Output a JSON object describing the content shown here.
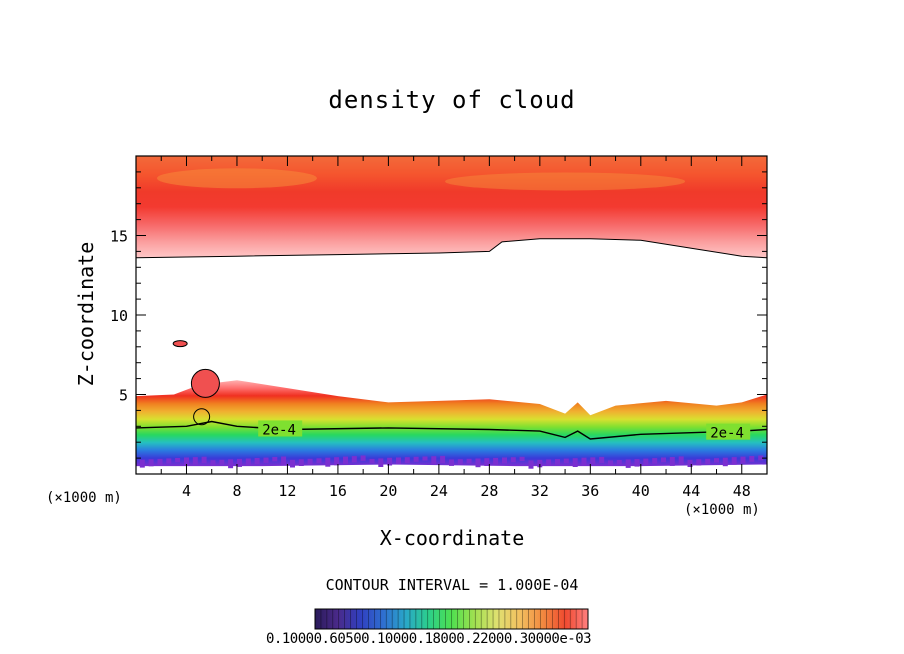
{
  "chart_data": {
    "type": "heatmap",
    "title": "density of cloud",
    "xlabel": "X-coordinate",
    "ylabel": "Z-coordinate",
    "x_unit_left": "(×1000 m)",
    "x_unit_right": "(×1000 m)",
    "xlim": [
      0,
      50
    ],
    "ylim": [
      0,
      20
    ],
    "xticks": [
      "4",
      "8",
      "12",
      "16",
      "20",
      "24",
      "28",
      "32",
      "36",
      "40",
      "44",
      "48"
    ],
    "xtick_values": [
      4,
      8,
      12,
      16,
      20,
      24,
      28,
      32,
      36,
      40,
      44,
      48
    ],
    "yticks": [
      "5",
      "10",
      "15"
    ],
    "ytick_values": [
      5,
      10,
      15
    ],
    "contour_label": "2e-4",
    "contour_interval_text": "CONTOUR INTERVAL = 1.000E-04",
    "colorbar_labels_text": "0.10000.60500.10000.18000.22000.30000e-03",
    "colormap": [
      "#7b2fd0",
      "#3a3ad8",
      "#2a7be0",
      "#25c0c0",
      "#28d860",
      "#7fe030",
      "#d8e030",
      "#f0b030",
      "#f08020",
      "#f03020",
      "#ff7070",
      "#ffb0b0"
    ],
    "colorbar_colors": [
      "#2a1b5a",
      "#4a2a8a",
      "#3040c0",
      "#2f6fd0",
      "#29a8c8",
      "#2ccf8a",
      "#4fe050",
      "#a0e050",
      "#dfe070",
      "#f2c060",
      "#f28a40",
      "#f04a30",
      "#ff8080"
    ],
    "upper_cloud": {
      "base": [
        [
          0,
          13.6
        ],
        [
          8,
          13.7
        ],
        [
          16,
          13.8
        ],
        [
          24,
          13.9
        ],
        [
          28,
          14.0
        ],
        [
          29,
          14.6
        ],
        [
          32,
          14.8
        ],
        [
          36,
          14.8
        ],
        [
          40,
          14.7
        ],
        [
          44,
          14.2
        ],
        [
          48,
          13.7
        ],
        [
          50,
          13.6
        ]
      ],
      "top": 20,
      "max_band": [
        15.5,
        16.6
      ]
    },
    "lower_cloud": {
      "top": [
        [
          0,
          4.9
        ],
        [
          3,
          5.0
        ],
        [
          5,
          5.6
        ],
        [
          8,
          5.9
        ],
        [
          12,
          5.4
        ],
        [
          16,
          4.9
        ],
        [
          20,
          4.5
        ],
        [
          24,
          4.6
        ],
        [
          28,
          4.7
        ],
        [
          32,
          4.4
        ],
        [
          34,
          3.8
        ],
        [
          35,
          4.5
        ],
        [
          36,
          3.7
        ],
        [
          38,
          4.3
        ],
        [
          42,
          4.6
        ],
        [
          46,
          4.3
        ],
        [
          48,
          4.5
        ],
        [
          50,
          5.0
        ]
      ],
      "base": [
        [
          0,
          0.5
        ],
        [
          10,
          0.5
        ],
        [
          20,
          0.6
        ],
        [
          30,
          0.5
        ],
        [
          40,
          0.5
        ],
        [
          50,
          0.6
        ]
      ],
      "contour_2e4": [
        [
          0,
          2.9
        ],
        [
          4,
          3.0
        ],
        [
          6,
          3.3
        ],
        [
          8,
          3.0
        ],
        [
          12,
          2.8
        ],
        [
          20,
          2.9
        ],
        [
          28,
          2.8
        ],
        [
          32,
          2.7
        ],
        [
          34,
          2.3
        ],
        [
          35,
          2.7
        ],
        [
          36,
          2.2
        ],
        [
          40,
          2.5
        ],
        [
          44,
          2.6
        ],
        [
          48,
          2.7
        ],
        [
          50,
          2.8
        ]
      ]
    }
  }
}
